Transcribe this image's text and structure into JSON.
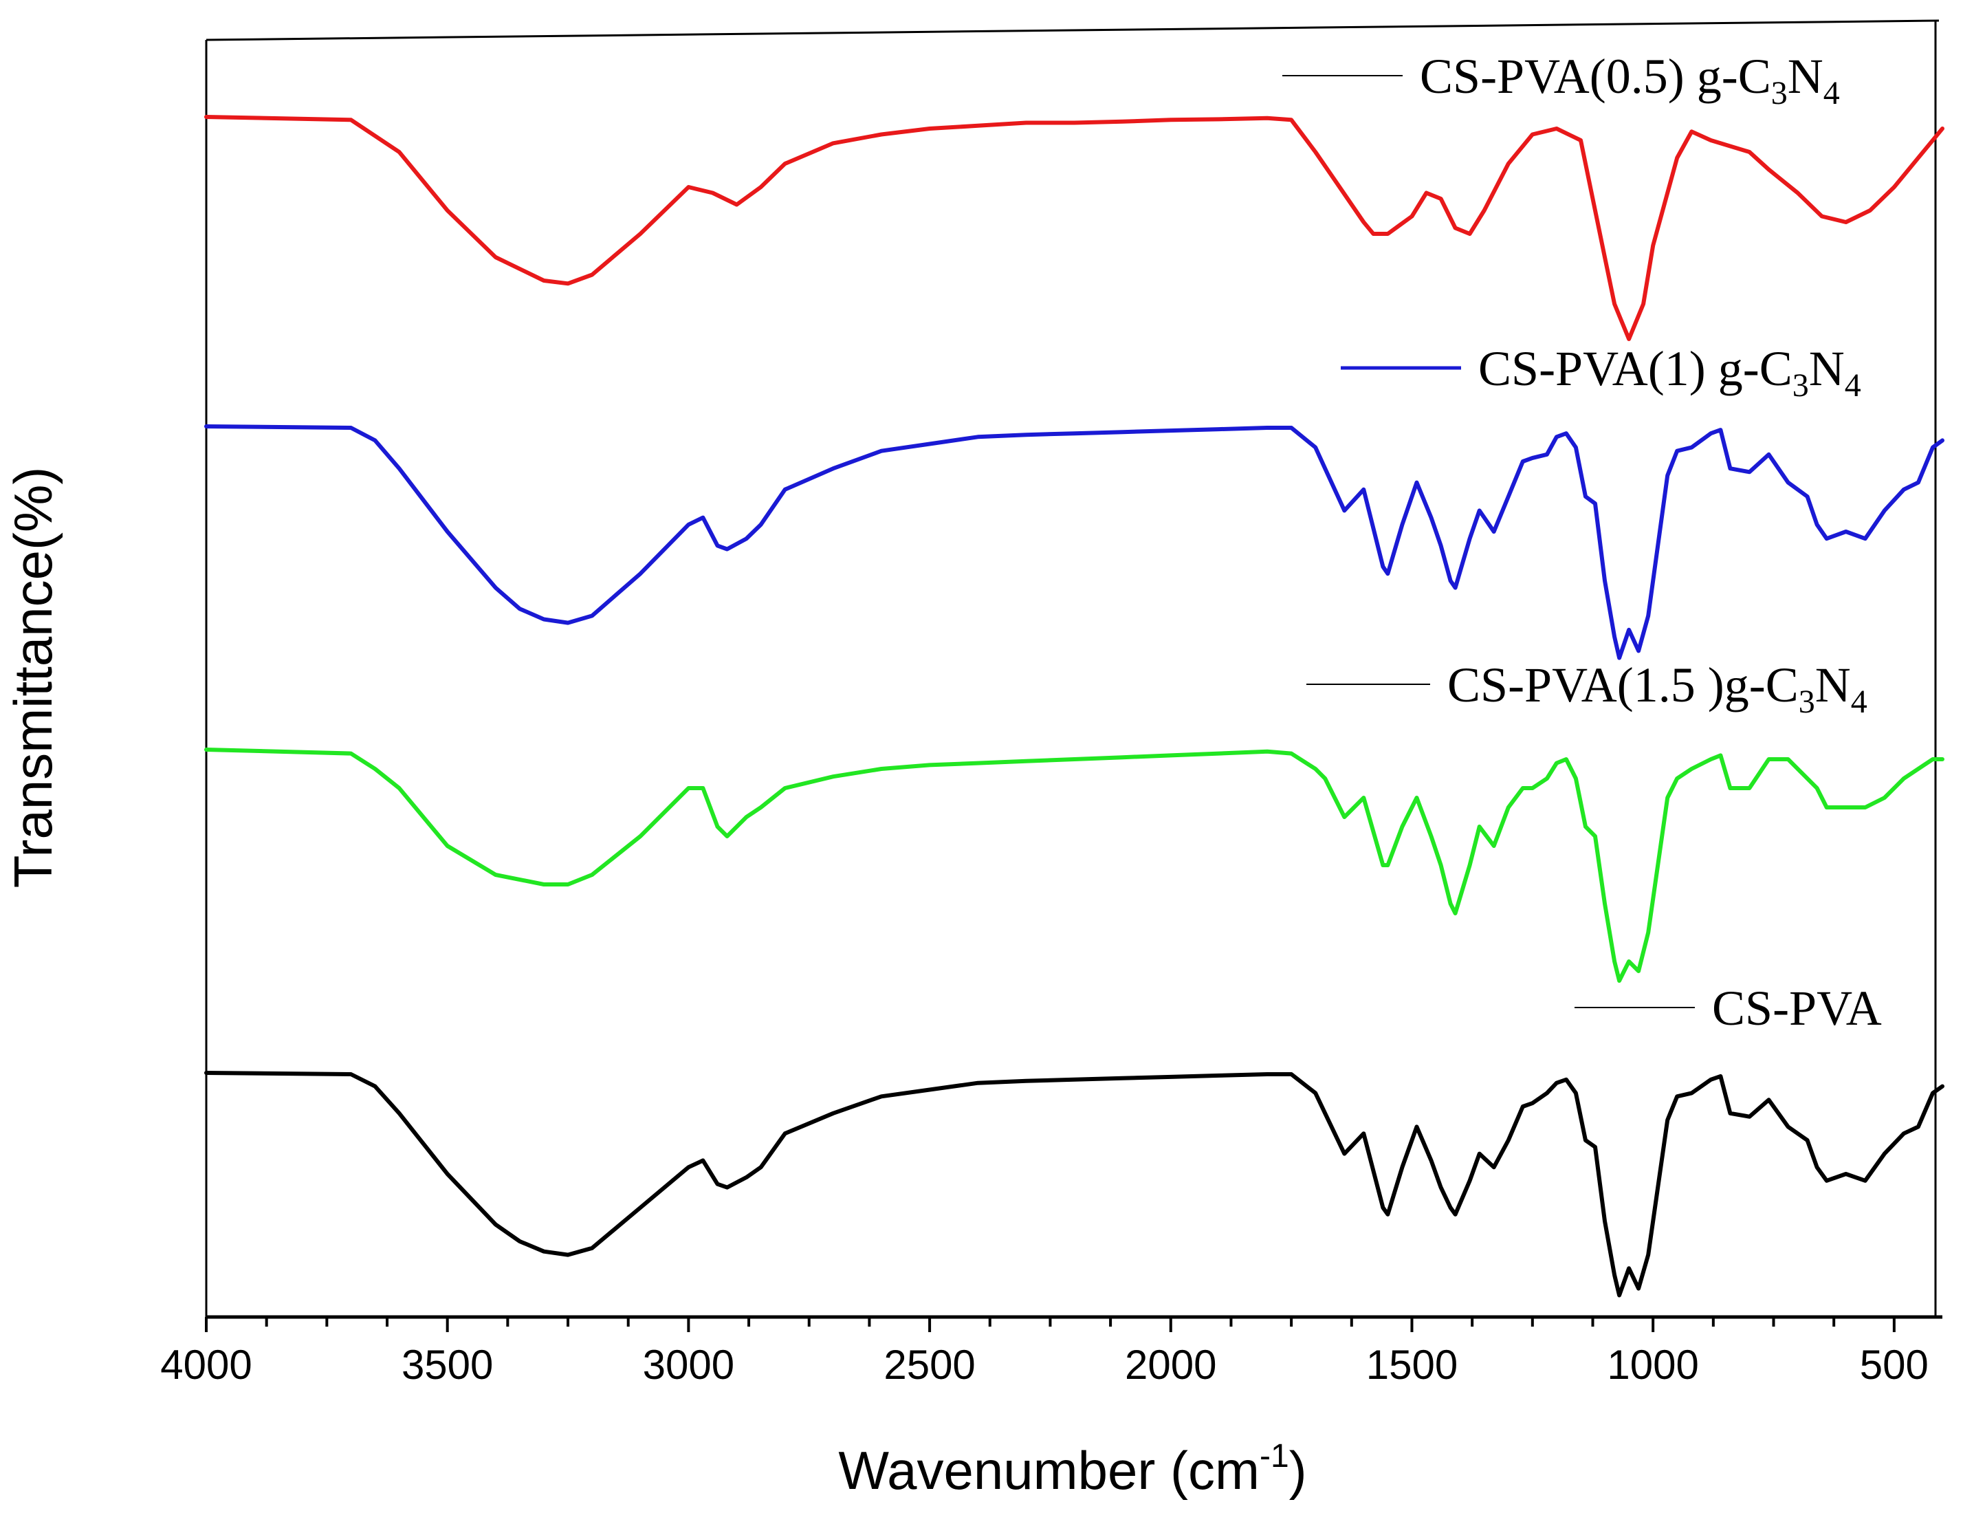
{
  "chart_data": {
    "type": "line",
    "title": "",
    "xlabel": "Wavenumber (cm",
    "xlabel_sup": "-1",
    "xlabel_close": ")",
    "ylabel": "Transmittance(%)",
    "xlim": [
      4000,
      400
    ],
    "x_reversed": true,
    "x_ticks": [
      4000,
      3500,
      3000,
      2500,
      2000,
      1500,
      1000,
      500
    ],
    "grid": false,
    "y_ticks_shown": false,
    "series": [
      {
        "name": "CS-PVA(0.5) g-C3N4",
        "label_main": "CS-PVA(0.5) g-C",
        "label_sub1": "3",
        "label_mid": "N",
        "label_sub2": "4",
        "color": "#e8191a",
        "x": [
          4000,
          3700,
          3600,
          3500,
          3400,
          3300,
          3250,
          3200,
          3100,
          3000,
          2950,
          2900,
          2850,
          2800,
          2700,
          2600,
          2500,
          2400,
          2300,
          2200,
          2100,
          2000,
          1900,
          1800,
          1750,
          1700,
          1650,
          1600,
          1580,
          1550,
          1500,
          1470,
          1440,
          1410,
          1380,
          1350,
          1300,
          1250,
          1200,
          1150,
          1100,
          1080,
          1050,
          1020,
          1000,
          950,
          920,
          880,
          800,
          760,
          700,
          650,
          600,
          550,
          500,
          450,
          400
        ],
        "values": [
          100,
          99.5,
          94,
          84,
          76,
          72,
          71.5,
          73,
          80,
          88,
          87,
          85,
          88,
          92,
          95.5,
          97,
          98,
          98.5,
          99,
          99,
          99.2,
          99.5,
          99.6,
          99.8,
          99.5,
          94,
          88,
          82,
          80,
          80,
          83,
          87,
          86,
          81,
          80,
          84,
          92,
          97,
          98,
          96,
          76,
          68,
          62,
          68,
          78,
          93,
          97.5,
          96,
          94,
          91,
          87,
          83,
          82,
          84,
          88,
          93,
          98
        ],
        "top_offset": 170,
        "amplitude": 8.5
      },
      {
        "name": "CS-PVA(1) g-C3N4",
        "label_main": "CS-PVA(1) g-C",
        "label_sub1": "3",
        "label_mid": "N",
        "label_sub2": "4",
        "color": "#1a1ad4",
        "x": [
          4000,
          3700,
          3650,
          3600,
          3500,
          3400,
          3350,
          3300,
          3250,
          3200,
          3150,
          3100,
          3000,
          2970,
          2940,
          2920,
          2880,
          2850,
          2800,
          2700,
          2600,
          2500,
          2400,
          2300,
          2200,
          2100,
          2000,
          1900,
          1800,
          1750,
          1700,
          1680,
          1640,
          1600,
          1560,
          1550,
          1520,
          1490,
          1460,
          1440,
          1420,
          1410,
          1380,
          1360,
          1330,
          1300,
          1270,
          1250,
          1220,
          1200,
          1180,
          1160,
          1140,
          1120,
          1100,
          1080,
          1070,
          1050,
          1030,
          1010,
          990,
          970,
          950,
          920,
          880,
          860,
          840,
          800,
          760,
          720,
          680,
          660,
          640,
          600,
          560,
          520,
          480,
          450,
          420,
          400
        ],
        "values": [
          100,
          99.8,
          98,
          94,
          85,
          77,
          74,
          72.5,
          72,
          73,
          76,
          79,
          86,
          87,
          83,
          82.5,
          84,
          86,
          91,
          94,
          96.5,
          97.5,
          98.5,
          98.8,
          99,
          99.2,
          99.4,
          99.6,
          99.8,
          99.8,
          97,
          94,
          88,
          91,
          80,
          79,
          86,
          92,
          87,
          83,
          78,
          77,
          84,
          88,
          85,
          90,
          95,
          95.5,
          96,
          98.5,
          99,
          97,
          90,
          89,
          78,
          70,
          67,
          71,
          68,
          73,
          83,
          93,
          96.5,
          97,
          99,
          99.5,
          94,
          93.5,
          96,
          92,
          90,
          86,
          84,
          85,
          84,
          88,
          91,
          92,
          97,
          98
        ],
        "top_offset": 620,
        "amplitude": 10.2
      },
      {
        "name": "CS-PVA(1.5 )g-C3N4",
        "label_main": "CS-PVA(1.5 )g-C",
        "label_sub1": "3",
        "label_mid": "N",
        "label_sub2": "4",
        "color": "#22e622",
        "x": [
          4000,
          3700,
          3650,
          3600,
          3500,
          3400,
          3300,
          3250,
          3200,
          3100,
          3000,
          2970,
          2940,
          2920,
          2880,
          2850,
          2800,
          2700,
          2600,
          2500,
          2400,
          2300,
          2200,
          2100,
          2000,
          1900,
          1800,
          1750,
          1700,
          1680,
          1640,
          1600,
          1560,
          1550,
          1520,
          1490,
          1460,
          1440,
          1420,
          1410,
          1380,
          1360,
          1330,
          1300,
          1270,
          1250,
          1220,
          1200,
          1180,
          1160,
          1140,
          1120,
          1100,
          1080,
          1070,
          1050,
          1030,
          1010,
          990,
          970,
          950,
          920,
          880,
          860,
          840,
          800,
          760,
          720,
          680,
          660,
          640,
          600,
          560,
          520,
          480,
          450,
          420,
          400
        ],
        "values": [
          100,
          99.8,
          99,
          98,
          95,
          93.5,
          93,
          93,
          93.5,
          95.5,
          98,
          98,
          96,
          95.5,
          96.5,
          97,
          98,
          98.6,
          99,
          99.2,
          99.3,
          99.4,
          99.5,
          99.6,
          99.7,
          99.8,
          99.9,
          99.8,
          99,
          98.5,
          96.5,
          97.5,
          94,
          94,
          96,
          97.5,
          95.5,
          94,
          92,
          91.5,
          94,
          96,
          95,
          97,
          98,
          98,
          98.5,
          99.3,
          99.5,
          98.5,
          96,
          95.5,
          92,
          89,
          88,
          89,
          88.5,
          90.5,
          94,
          97.5,
          98.5,
          99,
          99.5,
          99.7,
          98,
          98,
          99.5,
          99.5,
          98.5,
          98,
          97,
          97,
          97,
          97.5,
          98.5,
          99,
          99.5,
          99.5
        ],
        "top_offset": 1090,
        "amplitude": 28
      },
      {
        "name": "CS-PVA",
        "label_main": "CS-PVA",
        "label_sub1": "",
        "label_mid": "",
        "label_sub2": "",
        "color": "#000000",
        "x": [
          4000,
          3700,
          3650,
          3600,
          3500,
          3400,
          3350,
          3300,
          3250,
          3200,
          3150,
          3100,
          3000,
          2970,
          2940,
          2920,
          2880,
          2850,
          2800,
          2700,
          2600,
          2500,
          2400,
          2300,
          2200,
          2100,
          2000,
          1900,
          1800,
          1750,
          1700,
          1680,
          1640,
          1600,
          1560,
          1550,
          1520,
          1490,
          1460,
          1440,
          1420,
          1410,
          1380,
          1360,
          1330,
          1300,
          1270,
          1250,
          1220,
          1200,
          1180,
          1160,
          1140,
          1120,
          1100,
          1080,
          1070,
          1050,
          1030,
          1010,
          990,
          970,
          950,
          920,
          880,
          860,
          840,
          800,
          760,
          720,
          680,
          660,
          640,
          600,
          560,
          520,
          480,
          450,
          420,
          400
        ],
        "values": [
          100,
          99.8,
          98,
          94,
          85,
          77.5,
          75,
          73.5,
          73,
          74,
          77,
          80,
          86,
          87,
          83.5,
          83,
          84.5,
          86,
          91,
          94,
          96.5,
          97.5,
          98.5,
          98.8,
          99,
          99.2,
          99.4,
          99.6,
          99.8,
          99.8,
          97,
          94,
          88,
          91,
          80,
          79,
          86,
          92,
          87,
          83,
          80,
          79,
          84,
          88,
          86,
          90,
          95,
          95.5,
          97,
          98.5,
          99,
          97,
          90,
          89,
          78,
          70,
          67,
          71,
          68,
          73,
          83,
          93,
          96.5,
          97,
          99,
          99.5,
          94,
          93.5,
          96,
          92,
          90,
          86,
          84,
          85,
          84,
          88,
          91,
          92,
          97,
          98
        ],
        "top_offset": 1560,
        "amplitude": 9.8
      }
    ]
  }
}
